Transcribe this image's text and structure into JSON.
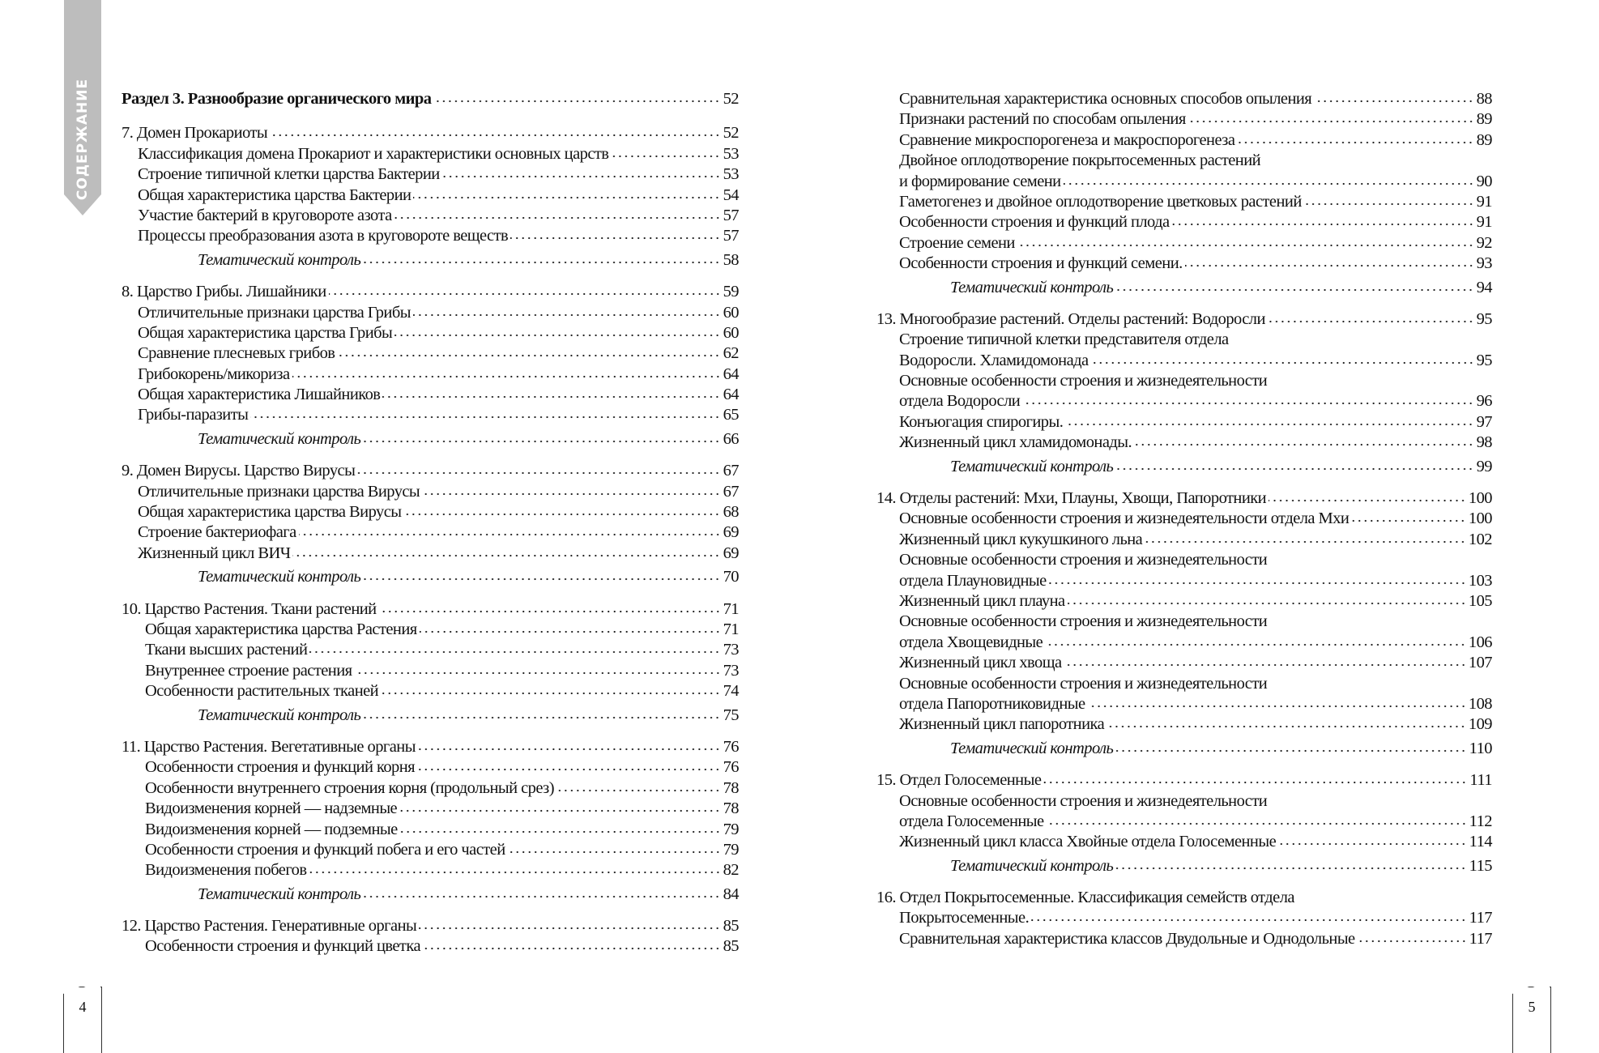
{
  "side_tab": {
    "label": "СОДЕРЖАНИЕ",
    "color": "#bdbdbd"
  },
  "left_page": {
    "number": "4",
    "entries": [
      {
        "k": "section",
        "t": "Раздел 3. Разнообразие органического мира",
        "p": "52"
      },
      {
        "k": "chapter first",
        "t": "7. Домен Прокариоты",
        "p": "52"
      },
      {
        "k": "item",
        "t": "Классификация домена Прокариот и характеристики основных царств",
        "p": "53"
      },
      {
        "k": "item",
        "t": "Строение типичной клетки царства Бактерии",
        "p": "53"
      },
      {
        "k": "item",
        "t": "Общая характеристика царства Бактерии",
        "p": "54"
      },
      {
        "k": "item",
        "t": "Участие бактерий в круговороте азота",
        "p": "57"
      },
      {
        "k": "item",
        "t": "Процессы преобразования азота в круговороте веществ",
        "p": "57"
      },
      {
        "k": "control",
        "t": "Тематический контроль",
        "p": "58"
      },
      {
        "k": "chapter",
        "t": "8. Царство Грибы. Лишайники",
        "p": "59"
      },
      {
        "k": "item",
        "t": "Отличительные признаки царства Грибы",
        "p": "60"
      },
      {
        "k": "item",
        "t": "Общая характеристика царства Грибы",
        "p": "60"
      },
      {
        "k": "item",
        "t": "Сравнение плесневых грибов",
        "p": "62"
      },
      {
        "k": "item",
        "t": "Грибокорень/микориза",
        "p": "64"
      },
      {
        "k": "item",
        "t": "Общая характеристика Лишайников",
        "p": "64"
      },
      {
        "k": "item",
        "t": "Грибы-паразиты",
        "p": "65"
      },
      {
        "k": "control",
        "t": "Тематический контроль",
        "p": "66"
      },
      {
        "k": "chapter",
        "t": "9. Домен Вирусы. Царство Вирусы",
        "p": "67"
      },
      {
        "k": "item",
        "t": "Отличительные признаки царства Вирусы",
        "p": "67"
      },
      {
        "k": "item",
        "t": "Общая характеристика царства Вирусы",
        "p": "68"
      },
      {
        "k": "item",
        "t": "Строение бактериофага",
        "p": "69"
      },
      {
        "k": "item",
        "t": " Жизненный цикл ВИЧ",
        "p": "69"
      },
      {
        "k": "control",
        "t": "Тематический контроль",
        "p": "70"
      },
      {
        "k": "chapter",
        "t": "10. Царство Растения. Ткани растений",
        "p": "71"
      },
      {
        "k": "item2",
        "t": "Общая характеристика царства Растения",
        "p": "71"
      },
      {
        "k": "item2",
        "t": "Ткани высших растений",
        "p": "73"
      },
      {
        "k": "item2",
        "t": "Внутреннее строение растения",
        "p": "73"
      },
      {
        "k": "item2",
        "t": "Особенности растительных тканей",
        "p": "74"
      },
      {
        "k": "control",
        "t": "Тематический контроль",
        "p": "75"
      },
      {
        "k": "chapter",
        "t": "11. Царство Растения. Вегетативные органы",
        "p": "76"
      },
      {
        "k": "item2",
        "t": "Особенности строения и функций корня",
        "p": "76"
      },
      {
        "k": "item2",
        "t": "Особенности внутреннего строения корня (продольный срез)",
        "p": "78"
      },
      {
        "k": "item2",
        "t": "Видоизменения корней — надземные",
        "p": "78"
      },
      {
        "k": "item2",
        "t": "Видоизменения корней — подземные",
        "p": "79"
      },
      {
        "k": "item2",
        "t": "Особенности строения и функций побега и его частей",
        "p": "79"
      },
      {
        "k": "item2",
        "t": "Видоизменения побегов",
        "p": "82"
      },
      {
        "k": "control",
        "t": "Тематический контроль",
        "p": "84"
      },
      {
        "k": "chapter",
        "t": "12. Царство Растения. Генеративные органы",
        "p": "85"
      },
      {
        "k": "item2",
        "t": "Особенности строения и функций цветка",
        "p": "85"
      }
    ]
  },
  "right_page": {
    "number": "5",
    "entries": [
      {
        "k": "item",
        "t": "Сравнительная характеристика основных способов опыления",
        "p": "88"
      },
      {
        "k": "item",
        "t": "Признаки растений по способам опыления",
        "p": "89"
      },
      {
        "k": "item",
        "t": "Сравнение микроспорогенеза и макроспорогенеза",
        "p": "89"
      },
      {
        "k": "wrap",
        "t": "Двойное оплодотворение покрытосеменных растений"
      },
      {
        "k": "item",
        "t": "и формирование семени",
        "p": "90"
      },
      {
        "k": "item",
        "t": "Гаметогенез и двойное оплодотворение цветковых растений",
        "p": "91"
      },
      {
        "k": "item",
        "t": "Особенности строения и функций плода",
        "p": "91"
      },
      {
        "k": "item",
        "t": "Строение семени",
        "p": "92"
      },
      {
        "k": "item",
        "t": "Особенности строения и функций семени.",
        "p": "93"
      },
      {
        "k": "control",
        "t": "Тематический контроль",
        "p": "94"
      },
      {
        "k": "chapter",
        "t": "13. Многообразие растений. Отделы растений: Водоросли",
        "p": "95"
      },
      {
        "k": "wrap",
        "t": "Строение типичной клетки представителя отдела"
      },
      {
        "k": "item",
        "t": "Водоросли. Хламидомонада",
        "p": "95"
      },
      {
        "k": "wrap",
        "t": "Основные особенности строения и жизнедеятельности"
      },
      {
        "k": "item",
        "t": "отдела Водоросли",
        "p": "96"
      },
      {
        "k": "item",
        "t": "Конъюгация спирогиры.",
        "p": "97"
      },
      {
        "k": "item",
        "t": "Жизненный цикл хламидомонады.",
        "p": "98"
      },
      {
        "k": "control",
        "t": "Тематический контроль",
        "p": "99"
      },
      {
        "k": "chapter",
        "t": "14. Отделы растений: Мхи, Плауны, Хвощи, Папоротники",
        "p": "100"
      },
      {
        "k": "item",
        "t": "Основные особенности строения и жизнедеятельности отдела Мхи",
        "p": "100"
      },
      {
        "k": "item",
        "t": "Жизненный цикл кукушкиного льна",
        "p": "102"
      },
      {
        "k": "wrap",
        "t": "Основные особенности строения и жизнедеятельности"
      },
      {
        "k": "item",
        "t": "отдела Плауновидные",
        "p": "103"
      },
      {
        "k": "item",
        "t": "Жизненный цикл плауна",
        "p": "105"
      },
      {
        "k": "wrap",
        "t": "Основные особенности строения и жизнедеятельности"
      },
      {
        "k": "item",
        "t": "отдела Хвощевидные",
        "p": "106"
      },
      {
        "k": "item",
        "t": "Жизненный цикл хвоща",
        "p": "107"
      },
      {
        "k": "wrap",
        "t": "Основные особенности строения и жизнедеятельности"
      },
      {
        "k": "item",
        "t": "отдела Папоротниковидные",
        "p": "108"
      },
      {
        "k": "item",
        "t": "Жизненный цикл папоротника",
        "p": "109"
      },
      {
        "k": "control",
        "t": "Тематический контроль",
        "p": "110"
      },
      {
        "k": "chapter",
        "t": "15. Отдел Голосеменные",
        "p": "111"
      },
      {
        "k": "wrap",
        "t": "Основные особенности строения и жизнедеятельности"
      },
      {
        "k": "item",
        "t": "отдела Голосеменные",
        "p": "112"
      },
      {
        "k": "item",
        "t": "Жизненный цикл класса Хвойные отдела Голосеменные",
        "p": "114"
      },
      {
        "k": "control",
        "t": "Тематический контроль",
        "p": "115"
      },
      {
        "k": "chapter",
        "t": "16. Отдел Покрытосеменные. Классификация семейств отдела"
      },
      {
        "k": "item",
        "t": "Покрытосеменные.",
        "p": "117"
      },
      {
        "k": "item",
        "t": "Сравнительная характеристика классов Двудольные и Однодольные",
        "p": "117"
      }
    ]
  }
}
